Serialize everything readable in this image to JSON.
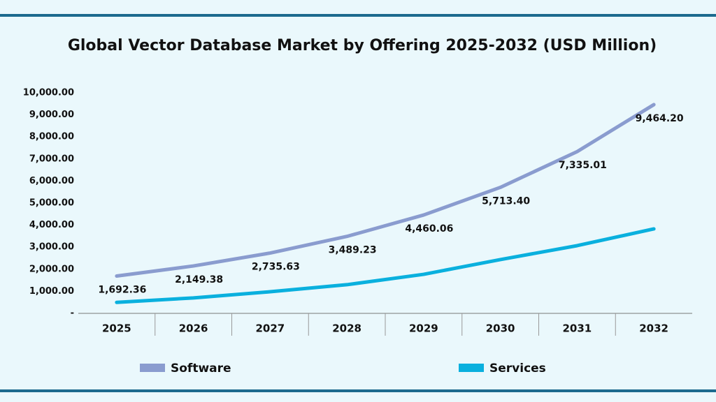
{
  "chart_data": {
    "type": "line",
    "title": "Global Vector Database Market by Offering 2025-2032 (USD Million)",
    "categories": [
      "2025",
      "2026",
      "2027",
      "2028",
      "2029",
      "2030",
      "2031",
      "2032"
    ],
    "series": [
      {
        "name": "Software",
        "color": "#8a9ccf",
        "values": [
          1692.36,
          2149.38,
          2735.63,
          3489.23,
          4460.06,
          5713.4,
          7335.01,
          9464.2
        ],
        "value_labels": [
          "1,692.36",
          "2,149.38",
          "2,735.63",
          "3,489.23",
          "4,460.06",
          "5,713.40",
          "7,335.01",
          "9,464.20"
        ]
      },
      {
        "name": "Services",
        "color": "#0ab0de",
        "values": [
          500,
          700,
          980,
          1300,
          1770,
          2440,
          3070,
          3830
        ]
      }
    ],
    "ylim": [
      0,
      10000
    ],
    "yticks": [
      {
        "value": 0,
        "label": "-"
      },
      {
        "value": 1000,
        "label": "1,000.00"
      },
      {
        "value": 2000,
        "label": "2,000.00"
      },
      {
        "value": 3000,
        "label": "3,000.00"
      },
      {
        "value": 4000,
        "label": "4,000.00"
      },
      {
        "value": 5000,
        "label": "5,000.00"
      },
      {
        "value": 6000,
        "label": "6,000.00"
      },
      {
        "value": 7000,
        "label": "7,000.00"
      },
      {
        "value": 8000,
        "label": "8,000.00"
      },
      {
        "value": 9000,
        "label": "9,000.00"
      },
      {
        "value": 10000,
        "label": "10,000.00"
      }
    ],
    "grid": false,
    "legend": "bottom"
  }
}
